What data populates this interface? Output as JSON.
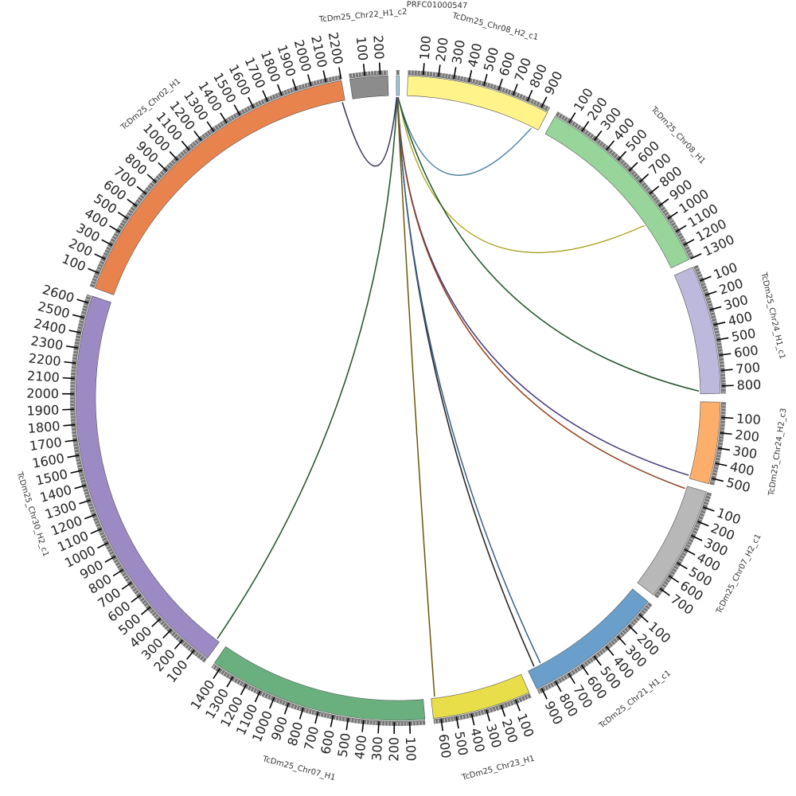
{
  "chart_data": {
    "type": "circos",
    "tick_interval": 100,
    "chromosomes": [
      {
        "name": "PRFC01000547",
        "length": 20,
        "color": "#9ecae1"
      },
      {
        "name": "TcDm25_Chr08_H2_c1",
        "length": 950,
        "color": "#fff38a"
      },
      {
        "name": "TcDm25_Chr08_H1",
        "length": 1300,
        "color": "#98d59a"
      },
      {
        "name": "TcDm25_Chr24_H1_c1",
        "length": 850,
        "color": "#bcb9dc"
      },
      {
        "name": "TcDm25_Chr24_H2_c3",
        "length": 540,
        "color": "#fdae6b"
      },
      {
        "name": "TcDm25_Chr07_H2_c1",
        "length": 760,
        "color": "#b8b8b8"
      },
      {
        "name": "TcDm25_Chr21_H1_c1",
        "length": 930,
        "color": "#6a9ecb"
      },
      {
        "name": "TcDm25_Chr23_H1",
        "length": 650,
        "color": "#e8de4a"
      },
      {
        "name": "TcDm25_Chr07_H1",
        "length": 1450,
        "color": "#6ab07f"
      },
      {
        "name": "TcDm25_Chr30_H2_c1",
        "length": 2650,
        "color": "#9b8ac4"
      },
      {
        "name": "TcDm25_Chr02_H1",
        "length": 2200,
        "color": "#e8834e"
      },
      {
        "name": "TcDm25_Chr22_H1_c2",
        "length": 250,
        "color": "#8c8c8c"
      }
    ],
    "links": [
      {
        "source": "PRFC01000547",
        "source_pos": 12,
        "target": "TcDm25_Chr08_H2_c1",
        "target_pos": 900,
        "color": "#6baed6"
      },
      {
        "source": "PRFC01000547",
        "source_pos": 14,
        "target": "TcDm25_Chr08_H1",
        "target_pos": 950,
        "color": "#e8de4a"
      },
      {
        "source": "PRFC01000547",
        "source_pos": 10,
        "target": "TcDm25_Chr24_H1_c1",
        "target_pos": 830,
        "color": "#2e6b3a"
      },
      {
        "source": "PRFC01000547",
        "source_pos": 9,
        "target": "TcDm25_Chr24_H2_c3",
        "target_pos": 520,
        "color": "#5a4e9e"
      },
      {
        "source": "PRFC01000547",
        "source_pos": 8,
        "target": "TcDm25_Chr07_H2_c1",
        "target_pos": 20,
        "color": "#b5542a"
      },
      {
        "source": "PRFC01000547",
        "source_pos": 7,
        "target": "TcDm25_Chr21_H1_c1",
        "target_pos": 880,
        "color": "#2b2b2b"
      },
      {
        "source": "PRFC01000547",
        "source_pos": 6,
        "target": "TcDm25_Chr21_H1_c1",
        "target_pos": 830,
        "color": "#4a7fb5"
      },
      {
        "source": "PRFC01000547",
        "source_pos": 5,
        "target": "TcDm25_Chr23_H1",
        "target_pos": 625,
        "color": "#8a7a10"
      },
      {
        "source": "PRFC01000547",
        "source_pos": 4,
        "target": "TcDm25_Chr30_H2_c1",
        "target_pos": 25,
        "color": "#2e6b3a"
      },
      {
        "source": "PRFC01000547",
        "source_pos": 2,
        "target": "TcDm25_Chr02_H1",
        "target_pos": 2180,
        "color": "#4a3f7a"
      }
    ]
  }
}
